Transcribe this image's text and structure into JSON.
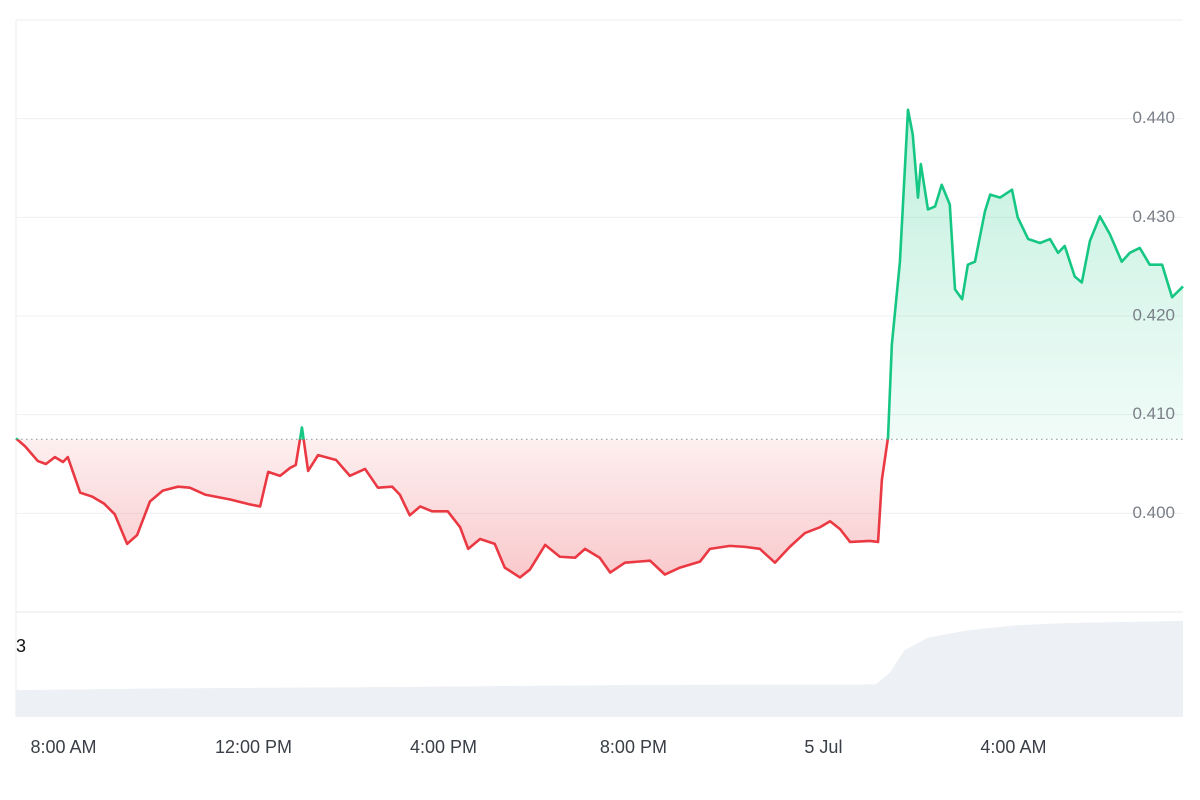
{
  "chart_data": [
    {
      "type": "line",
      "x": [
        7.0,
        7.19,
        7.46,
        7.63,
        7.82,
        7.99,
        8.09,
        8.35,
        8.6,
        8.85,
        9.08,
        9.34,
        9.55,
        9.82,
        10.09,
        10.41,
        10.66,
        10.98,
        11.51,
        11.93,
        12.14,
        12.31,
        12.56,
        12.77,
        12.89,
        13.02,
        13.15,
        13.36,
        13.74,
        14.03,
        14.35,
        14.62,
        14.92,
        15.08,
        15.29,
        15.51,
        15.76,
        16.09,
        16.35,
        16.52,
        16.77,
        17.08,
        17.29,
        17.61,
        17.82,
        18.14,
        18.45,
        18.77,
        18.98,
        19.29,
        19.51,
        19.82,
        20.35,
        20.66,
        20.98,
        21.4,
        21.61,
        22.03,
        22.35,
        22.66,
        22.98,
        23.29,
        23.61,
        23.93,
        24.14,
        24.35,
        24.56,
        24.98,
        25.15,
        25.23,
        25.36,
        25.44,
        25.61,
        25.78,
        25.88,
        25.99,
        26.05,
        26.2,
        26.35,
        26.49,
        26.66,
        26.77,
        26.92,
        27.04,
        27.19,
        27.4,
        27.51,
        27.72,
        27.97,
        28.09,
        28.31,
        28.56,
        28.77,
        28.94,
        29.08,
        29.29,
        29.44,
        29.61,
        29.82,
        30.03,
        30.28,
        30.45,
        30.66,
        30.87,
        31.13,
        31.34,
        31.57
      ],
      "values": [
        0.4076,
        0.4068,
        0.4053,
        0.405,
        0.4057,
        0.4052,
        0.4057,
        0.4021,
        0.4017,
        0.401,
        0.3999,
        0.3969,
        0.3978,
        0.4012,
        0.4023,
        0.4027,
        0.4026,
        0.4019,
        0.4014,
        0.4009,
        0.4007,
        0.4042,
        0.4038,
        0.4046,
        0.4049,
        0.4087,
        0.4043,
        0.4059,
        0.4054,
        0.4038,
        0.4045,
        0.4026,
        0.4027,
        0.4019,
        0.3998,
        0.4007,
        0.4002,
        0.4002,
        0.3986,
        0.3964,
        0.3974,
        0.3969,
        0.3945,
        0.3935,
        0.3943,
        0.3968,
        0.3956,
        0.3955,
        0.3964,
        0.3955,
        0.394,
        0.395,
        0.3952,
        0.3938,
        0.3945,
        0.3951,
        0.3964,
        0.3967,
        0.3966,
        0.3964,
        0.395,
        0.3966,
        0.398,
        0.3986,
        0.3992,
        0.3984,
        0.3971,
        0.3972,
        0.3971,
        0.4034,
        0.4077,
        0.4171,
        0.4255,
        0.4409,
        0.4384,
        0.432,
        0.4354,
        0.4308,
        0.4311,
        0.4333,
        0.4313,
        0.4227,
        0.4217,
        0.4252,
        0.4255,
        0.4306,
        0.4323,
        0.432,
        0.4328,
        0.43,
        0.4278,
        0.4274,
        0.4278,
        0.4264,
        0.4271,
        0.424,
        0.4234,
        0.4276,
        0.4301,
        0.4283,
        0.4255,
        0.4264,
        0.4269,
        0.4252,
        0.4252,
        0.4219,
        0.423
      ],
      "baseline": 0.4075,
      "up_color": "#16c784",
      "down_color": "#ea3943",
      "xlim": [
        7,
        31.57
      ],
      "xticks": [
        {
          "value": 8,
          "label": "8:00 AM"
        },
        {
          "value": 12,
          "label": "12:00 PM"
        },
        {
          "value": 16,
          "label": "4:00 PM"
        },
        {
          "value": 20,
          "label": "8:00 PM"
        },
        {
          "value": 24,
          "label": "5 Jul"
        },
        {
          "value": 28,
          "label": "4:00 AM"
        }
      ],
      "ylim": [
        0.39,
        0.45
      ],
      "yticks": [
        {
          "value": 0.4,
          "label": "0.400"
        },
        {
          "value": 0.41,
          "label": "0.410"
        },
        {
          "value": 0.42,
          "label": "0.420"
        },
        {
          "value": 0.43,
          "label": "0.430"
        },
        {
          "value": 0.44,
          "label": "0.440"
        }
      ],
      "grid": true
    },
    {
      "type": "area",
      "x": [
        7.0,
        10.0,
        13.0,
        16.0,
        18.0,
        20.0,
        22.0,
        24.0,
        25.1,
        25.4,
        25.7,
        26.2,
        27.0,
        28.0,
        29.0,
        30.0,
        31.57
      ],
      "values": [
        1.15,
        1.22,
        1.26,
        1.3,
        1.34,
        1.37,
        1.38,
        1.38,
        1.4,
        1.9,
        2.85,
        3.4,
        3.7,
        3.92,
        4.02,
        4.06,
        4.12
      ],
      "color": "#edf0f4",
      "xlim": [
        7,
        31.57
      ],
      "ylim": [
        0,
        4.5
      ],
      "yticks": [
        3
      ]
    }
  ]
}
